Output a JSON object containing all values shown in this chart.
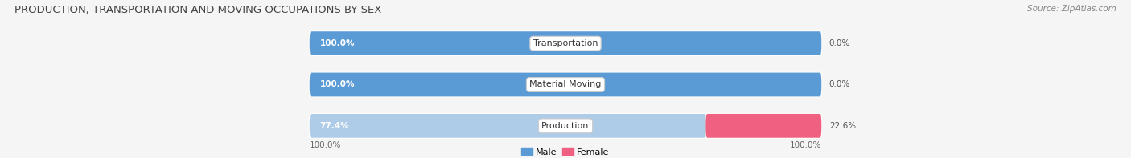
{
  "title": "PRODUCTION, TRANSPORTATION AND MOVING OCCUPATIONS BY SEX",
  "source": "Source: ZipAtlas.com",
  "categories": [
    "Transportation",
    "Material Moving",
    "Production"
  ],
  "male_values": [
    100.0,
    100.0,
    77.4
  ],
  "female_values": [
    0.0,
    0.0,
    22.6
  ],
  "male_color_dark": "#5B9BD5",
  "male_color_light": "#AECCE8",
  "female_color_dark": "#F06080",
  "female_color_light": "#F4A8BA",
  "bg_color": "#F5F5F5",
  "bar_bg_color": "#E0E0E0",
  "title_fontsize": 9.5,
  "source_fontsize": 7.5,
  "tick_label_fontsize": 7.5,
  "bar_label_fontsize": 7.5,
  "category_fontsize": 8,
  "bar_height": 0.58,
  "xlim_left": -110,
  "xlim_right": 110,
  "total_bar_width": 100
}
